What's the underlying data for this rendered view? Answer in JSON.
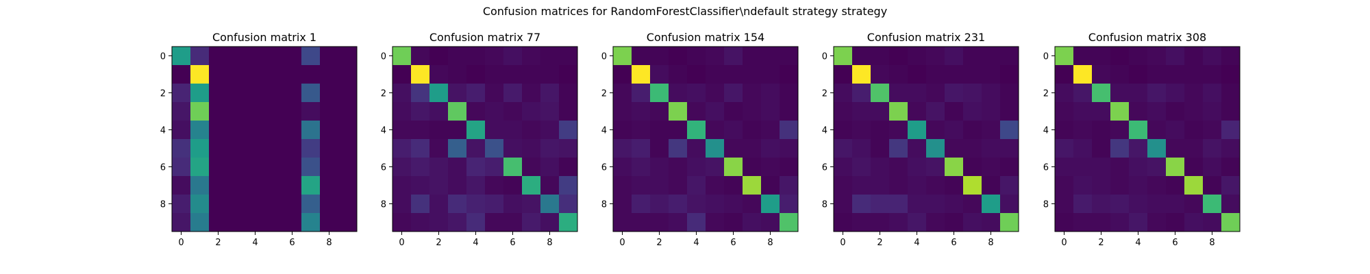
{
  "figure": {
    "title": "Confusion matrices for RandomForestClassifier\\ndefault strategy strategy"
  },
  "colormap": {
    "name": "viridis",
    "stops": [
      "#440154",
      "#482878",
      "#3e4989",
      "#31688e",
      "#26828e",
      "#1f9e89",
      "#35b779",
      "#6ece58",
      "#b5de2b",
      "#fde725"
    ]
  },
  "chart_data": [
    {
      "type": "heatmap",
      "title": "Confusion matrix 1",
      "x_ticks": [
        "0",
        "2",
        "4",
        "6",
        "8"
      ],
      "y_ticks": [
        "0",
        "2",
        "4",
        "6",
        "8"
      ],
      "range": [
        0,
        1
      ],
      "values": [
        [
          0.55,
          0.12,
          0.0,
          0.0,
          0.0,
          0.0,
          0.0,
          0.22,
          0.0,
          0.0
        ],
        [
          0.0,
          1.0,
          0.0,
          0.0,
          0.0,
          0.0,
          0.0,
          0.0,
          0.0,
          0.0
        ],
        [
          0.1,
          0.55,
          0.0,
          0.0,
          0.0,
          0.0,
          0.0,
          0.28,
          0.0,
          0.0
        ],
        [
          0.06,
          0.78,
          0.0,
          0.0,
          0.0,
          0.0,
          0.0,
          0.03,
          0.0,
          0.0
        ],
        [
          0.04,
          0.45,
          0.0,
          0.0,
          0.0,
          0.0,
          0.0,
          0.38,
          0.0,
          0.0
        ],
        [
          0.14,
          0.55,
          0.0,
          0.0,
          0.0,
          0.0,
          0.0,
          0.18,
          0.0,
          0.0
        ],
        [
          0.12,
          0.58,
          0.0,
          0.0,
          0.0,
          0.0,
          0.0,
          0.25,
          0.0,
          0.0
        ],
        [
          0.03,
          0.4,
          0.0,
          0.0,
          0.0,
          0.0,
          0.0,
          0.58,
          0.0,
          0.0
        ],
        [
          0.08,
          0.48,
          0.0,
          0.0,
          0.0,
          0.0,
          0.0,
          0.3,
          0.0,
          0.0
        ],
        [
          0.06,
          0.42,
          0.0,
          0.0,
          0.0,
          0.0,
          0.0,
          0.45,
          0.0,
          0.0
        ]
      ]
    },
    {
      "type": "heatmap",
      "title": "Confusion matrix 77",
      "x_ticks": [
        "0",
        "2",
        "4",
        "6",
        "8"
      ],
      "y_ticks": [
        "0",
        "2",
        "4",
        "6",
        "8"
      ],
      "range": [
        0,
        1
      ],
      "values": [
        [
          0.78,
          0.02,
          0.0,
          0.01,
          0.01,
          0.02,
          0.04,
          0.02,
          0.01,
          0.01
        ],
        [
          0.0,
          1.0,
          0.02,
          0.01,
          0.0,
          0.01,
          0.01,
          0.01,
          0.01,
          0.0
        ],
        [
          0.04,
          0.15,
          0.55,
          0.05,
          0.08,
          0.02,
          0.07,
          0.02,
          0.06,
          0.01
        ],
        [
          0.03,
          0.06,
          0.04,
          0.75,
          0.02,
          0.03,
          0.02,
          0.04,
          0.05,
          0.01
        ],
        [
          0.02,
          0.02,
          0.01,
          0.01,
          0.58,
          0.03,
          0.03,
          0.02,
          0.03,
          0.18
        ],
        [
          0.08,
          0.12,
          0.02,
          0.3,
          0.05,
          0.25,
          0.04,
          0.03,
          0.06,
          0.05
        ],
        [
          0.05,
          0.07,
          0.05,
          0.03,
          0.1,
          0.08,
          0.7,
          0.02,
          0.04,
          0.01
        ],
        [
          0.03,
          0.04,
          0.05,
          0.03,
          0.06,
          0.02,
          0.01,
          0.62,
          0.02,
          0.18
        ],
        [
          0.03,
          0.14,
          0.04,
          0.12,
          0.09,
          0.08,
          0.04,
          0.05,
          0.4,
          0.13
        ],
        [
          0.02,
          0.03,
          0.04,
          0.06,
          0.12,
          0.02,
          0.02,
          0.07,
          0.04,
          0.62
        ]
      ]
    },
    {
      "type": "heatmap",
      "title": "Confusion matrix 154",
      "x_ticks": [
        "0",
        "2",
        "4",
        "6",
        "8"
      ],
      "y_ticks": [
        "0",
        "2",
        "4",
        "6",
        "8"
      ],
      "range": [
        0,
        1
      ],
      "values": [
        [
          0.8,
          0.01,
          0.01,
          0.0,
          0.01,
          0.02,
          0.05,
          0.01,
          0.01,
          0.01
        ],
        [
          0.0,
          1.0,
          0.03,
          0.01,
          0.0,
          0.01,
          0.01,
          0.01,
          0.01,
          0.0
        ],
        [
          0.02,
          0.08,
          0.68,
          0.03,
          0.04,
          0.02,
          0.06,
          0.02,
          0.03,
          0.01
        ],
        [
          0.02,
          0.03,
          0.02,
          0.8,
          0.02,
          0.04,
          0.01,
          0.02,
          0.03,
          0.01
        ],
        [
          0.01,
          0.02,
          0.01,
          0.01,
          0.65,
          0.02,
          0.03,
          0.01,
          0.02,
          0.14
        ],
        [
          0.06,
          0.08,
          0.01,
          0.16,
          0.03,
          0.5,
          0.02,
          0.02,
          0.04,
          0.03
        ],
        [
          0.03,
          0.05,
          0.03,
          0.02,
          0.04,
          0.05,
          0.82,
          0.01,
          0.02,
          0.01
        ],
        [
          0.02,
          0.03,
          0.03,
          0.02,
          0.06,
          0.02,
          0.01,
          0.85,
          0.01,
          0.06
        ],
        [
          0.02,
          0.08,
          0.06,
          0.08,
          0.05,
          0.04,
          0.03,
          0.02,
          0.55,
          0.08
        ],
        [
          0.02,
          0.02,
          0.02,
          0.03,
          0.12,
          0.02,
          0.01,
          0.04,
          0.03,
          0.72
        ]
      ]
    },
    {
      "type": "heatmap",
      "title": "Confusion matrix 231",
      "x_ticks": [
        "0",
        "2",
        "4",
        "6",
        "8"
      ],
      "y_ticks": [
        "0",
        "2",
        "4",
        "6",
        "8"
      ],
      "range": [
        0,
        1
      ],
      "values": [
        [
          0.8,
          0.01,
          0.01,
          0.0,
          0.01,
          0.02,
          0.04,
          0.01,
          0.01,
          0.01
        ],
        [
          0.0,
          1.0,
          0.02,
          0.01,
          0.0,
          0.01,
          0.01,
          0.01,
          0.01,
          0.0
        ],
        [
          0.03,
          0.08,
          0.72,
          0.03,
          0.03,
          0.02,
          0.06,
          0.05,
          0.03,
          0.01
        ],
        [
          0.02,
          0.03,
          0.03,
          0.8,
          0.02,
          0.05,
          0.01,
          0.04,
          0.03,
          0.01
        ],
        [
          0.01,
          0.02,
          0.01,
          0.02,
          0.55,
          0.02,
          0.03,
          0.01,
          0.02,
          0.22
        ],
        [
          0.06,
          0.04,
          0.01,
          0.16,
          0.03,
          0.5,
          0.02,
          0.02,
          0.03,
          0.03
        ],
        [
          0.03,
          0.05,
          0.03,
          0.02,
          0.04,
          0.05,
          0.82,
          0.01,
          0.02,
          0.01
        ],
        [
          0.02,
          0.03,
          0.03,
          0.02,
          0.03,
          0.02,
          0.01,
          0.88,
          0.01,
          0.06
        ],
        [
          0.02,
          0.12,
          0.1,
          0.1,
          0.04,
          0.04,
          0.03,
          0.02,
          0.55,
          0.04
        ],
        [
          0.01,
          0.02,
          0.02,
          0.03,
          0.06,
          0.02,
          0.01,
          0.04,
          0.03,
          0.78
        ]
      ]
    },
    {
      "type": "heatmap",
      "title": "Confusion matrix 308",
      "x_ticks": [
        "0",
        "2",
        "4",
        "6",
        "8"
      ],
      "y_ticks": [
        "0",
        "2",
        "4",
        "6",
        "8"
      ],
      "range": [
        0,
        1
      ],
      "values": [
        [
          0.8,
          0.01,
          0.01,
          0.0,
          0.01,
          0.02,
          0.04,
          0.01,
          0.03,
          0.01
        ],
        [
          0.0,
          1.0,
          0.02,
          0.01,
          0.0,
          0.01,
          0.01,
          0.01,
          0.01,
          0.0
        ],
        [
          0.03,
          0.06,
          0.7,
          0.03,
          0.03,
          0.06,
          0.04,
          0.02,
          0.04,
          0.01
        ],
        [
          0.02,
          0.03,
          0.03,
          0.8,
          0.02,
          0.03,
          0.01,
          0.02,
          0.03,
          0.01
        ],
        [
          0.01,
          0.02,
          0.01,
          0.02,
          0.68,
          0.02,
          0.03,
          0.01,
          0.02,
          0.1
        ],
        [
          0.06,
          0.04,
          0.01,
          0.16,
          0.06,
          0.5,
          0.02,
          0.02,
          0.05,
          0.03
        ],
        [
          0.03,
          0.03,
          0.03,
          0.02,
          0.04,
          0.05,
          0.82,
          0.01,
          0.03,
          0.01
        ],
        [
          0.02,
          0.04,
          0.03,
          0.02,
          0.03,
          0.02,
          0.01,
          0.85,
          0.01,
          0.06
        ],
        [
          0.02,
          0.07,
          0.05,
          0.06,
          0.04,
          0.03,
          0.03,
          0.02,
          0.68,
          0.03
        ],
        [
          0.01,
          0.02,
          0.02,
          0.03,
          0.06,
          0.02,
          0.01,
          0.04,
          0.03,
          0.78
        ]
      ]
    }
  ]
}
